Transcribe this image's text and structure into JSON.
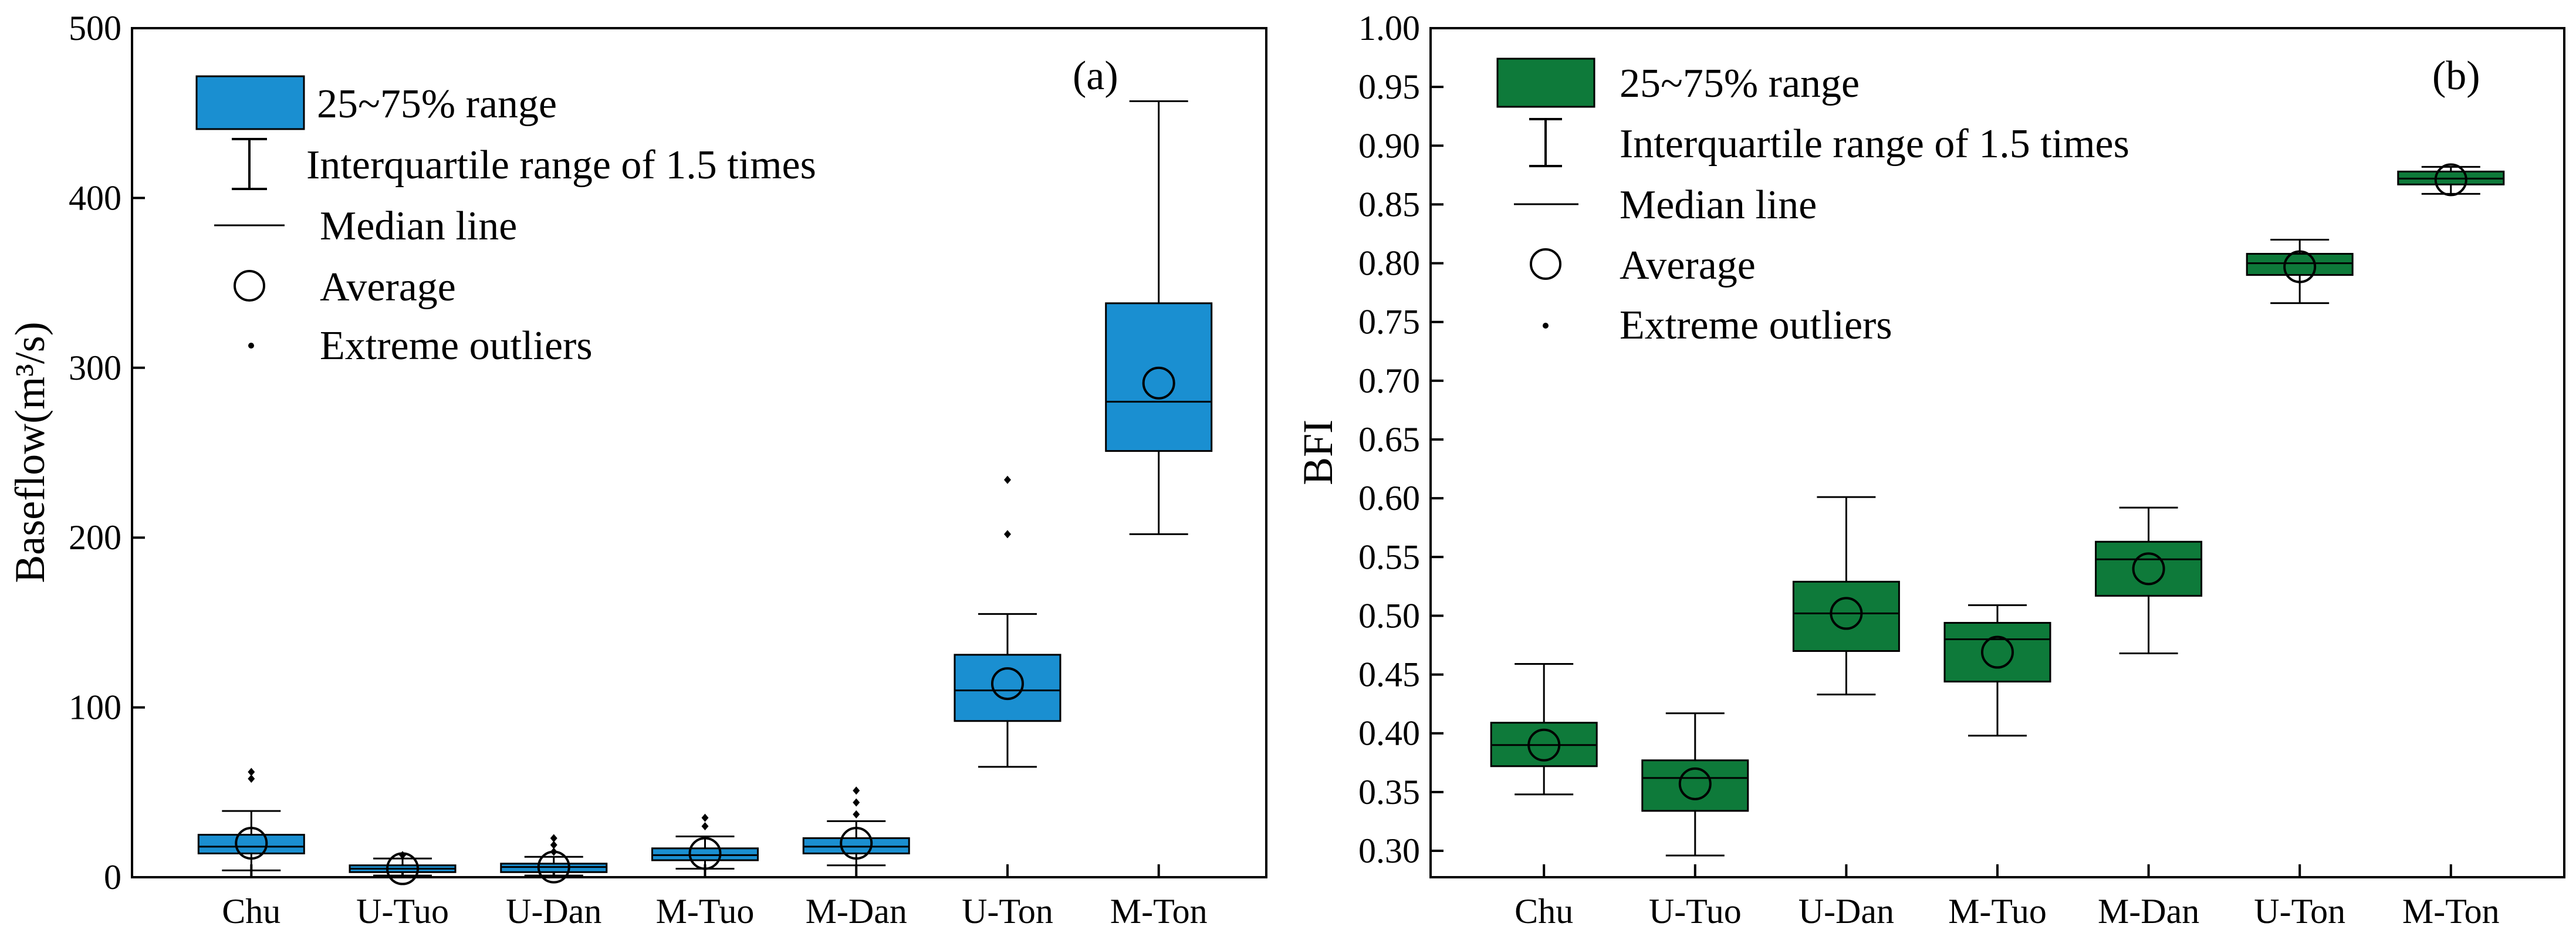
{
  "chart_data": [
    {
      "type": "box",
      "panel_label": "(a)",
      "ylabel": "Baseflow(m³/s)",
      "xlabel": "",
      "ylim": [
        0,
        500
      ],
      "yticks": [
        0,
        100,
        200,
        300,
        400,
        500
      ],
      "categories": [
        "Chu",
        "U-Tuo",
        "U-Dan",
        "M-Tuo",
        "M-Dan",
        "U-Ton",
        "M-Ton"
      ],
      "box_color": "#1a8fd1",
      "legend": {
        "position": "top-left",
        "entries": [
          "25~75% range",
          "Interquartile range of 1.5 times",
          "Median line",
          "Average",
          "Extreme outliers"
        ]
      },
      "boxes": [
        {
          "category": "Chu",
          "q1": 14,
          "median": 18,
          "q3": 25,
          "whisker_low": 4,
          "whisker_high": 39,
          "mean": 20,
          "outliers": [
            58,
            62
          ]
        },
        {
          "category": "U-Tuo",
          "q1": 3,
          "median": 5,
          "q3": 7,
          "whisker_low": 1,
          "whisker_high": 11,
          "mean": 5,
          "outliers": [
            13
          ]
        },
        {
          "category": "U-Dan",
          "q1": 3,
          "median": 6,
          "q3": 8,
          "whisker_low": 1,
          "whisker_high": 12,
          "mean": 6,
          "outliers": [
            15,
            19,
            23
          ]
        },
        {
          "category": "M-Tuo",
          "q1": 10,
          "median": 13,
          "q3": 17,
          "whisker_low": 5,
          "whisker_high": 24,
          "mean": 14,
          "outliers": [
            30,
            35
          ]
        },
        {
          "category": "M-Dan",
          "q1": 14,
          "median": 18,
          "q3": 23,
          "whisker_low": 7,
          "whisker_high": 33,
          "mean": 20,
          "outliers": [
            37,
            44,
            51
          ]
        },
        {
          "category": "U-Ton",
          "q1": 92,
          "median": 110,
          "q3": 131,
          "whisker_low": 65,
          "whisker_high": 155,
          "mean": 114,
          "outliers": [
            202,
            234
          ]
        },
        {
          "category": "M-Ton",
          "q1": 251,
          "median": 280,
          "q3": 338,
          "whisker_low": 202,
          "whisker_high": 457,
          "mean": 291,
          "outliers": []
        }
      ]
    },
    {
      "type": "box",
      "panel_label": "(b)",
      "ylabel": "BFI",
      "xlabel": "",
      "ylim": [
        0.27,
        1.0
      ],
      "yticks": [
        "0.30",
        "0.35",
        "0.40",
        "0.45",
        "0.50",
        "0.55",
        "0.60",
        "0.65",
        "0.70",
        "0.75",
        "0.80",
        "0.85",
        "0.90",
        "0.95",
        "1.00"
      ],
      "categories": [
        "Chu",
        "U-Tuo",
        "U-Dan",
        "M-Tuo",
        "M-Dan",
        "U-Ton",
        "M-Ton"
      ],
      "box_color": "#0e7a3a",
      "legend": {
        "position": "top-left",
        "entries": [
          "25~75% range",
          "Interquartile range of 1.5 times",
          "Median line",
          "Average",
          "Extreme outliers"
        ]
      },
      "boxes": [
        {
          "category": "Chu",
          "q1": 0.372,
          "median": 0.39,
          "q3": 0.409,
          "whisker_low": 0.348,
          "whisker_high": 0.459,
          "mean": 0.39,
          "outliers": []
        },
        {
          "category": "U-Tuo",
          "q1": 0.334,
          "median": 0.362,
          "q3": 0.377,
          "whisker_low": 0.296,
          "whisker_high": 0.417,
          "mean": 0.357,
          "outliers": []
        },
        {
          "category": "U-Dan",
          "q1": 0.47,
          "median": 0.502,
          "q3": 0.529,
          "whisker_low": 0.433,
          "whisker_high": 0.601,
          "mean": 0.502,
          "outliers": []
        },
        {
          "category": "M-Tuo",
          "q1": 0.444,
          "median": 0.48,
          "q3": 0.494,
          "whisker_low": 0.398,
          "whisker_high": 0.509,
          "mean": 0.469,
          "outliers": []
        },
        {
          "category": "M-Dan",
          "q1": 0.517,
          "median": 0.548,
          "q3": 0.563,
          "whisker_low": 0.468,
          "whisker_high": 0.592,
          "mean": 0.54,
          "outliers": []
        },
        {
          "category": "U-Ton",
          "q1": 0.79,
          "median": 0.8,
          "q3": 0.808,
          "whisker_low": 0.766,
          "whisker_high": 0.82,
          "mean": 0.797,
          "outliers": []
        },
        {
          "category": "M-Ton",
          "q1": 0.867,
          "median": 0.872,
          "q3": 0.878,
          "whisker_low": 0.859,
          "whisker_high": 0.882,
          "mean": 0.871,
          "outliers": []
        }
      ]
    }
  ]
}
